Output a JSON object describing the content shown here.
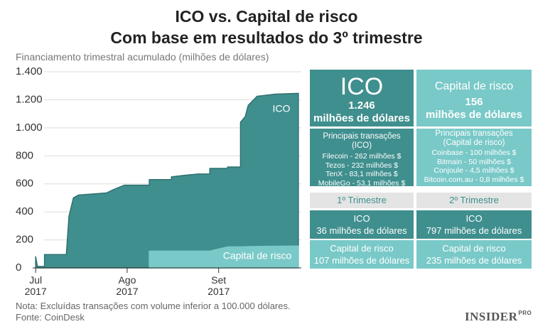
{
  "chart_data": {
    "type": "area",
    "title": "ICO vs. Capital de risco",
    "subtitle": "Com base em resultados do 3º trimestre",
    "y_label": "Financiamento trimestral acumulado (milhões de dólares)",
    "x": [
      0,
      0,
      0.6,
      3,
      3,
      10.4,
      10.4,
      11.3,
      12.8,
      14.5,
      24,
      26.5,
      30,
      38.5,
      38.5,
      46,
      46,
      50,
      55,
      59,
      59,
      65,
      65,
      69.4,
      69.4,
      71,
      72,
      75,
      81,
      89
    ],
    "series": [
      {
        "name": "ICO",
        "color": "#3f8f8e",
        "values": [
          0,
          80,
          10,
          10,
          95,
          95,
          100,
          370,
          500,
          520,
          535,
          560,
          590,
          590,
          630,
          630,
          650,
          660,
          670,
          670,
          710,
          710,
          720,
          720,
          1040,
          1080,
          1160,
          1225,
          1240,
          1246
        ]
      },
      {
        "name": "Capital de risco",
        "color": "#79c9c8",
        "values": [
          null,
          null,
          null,
          null,
          null,
          null,
          null,
          null,
          null,
          null,
          null,
          null,
          null,
          0,
          120,
          120,
          120,
          120,
          120,
          120,
          120,
          150,
          150,
          150,
          150,
          151,
          152,
          153,
          155,
          156
        ]
      }
    ],
    "xlim": [
      -1,
      90
    ],
    "xticks": [
      {
        "value": 0,
        "label": "Jul\n2017"
      },
      {
        "value": 31,
        "label": "Ago\n2017"
      },
      {
        "value": 62,
        "label": "Set\n2017"
      }
    ],
    "ylim": [
      0,
      1400
    ],
    "yticks": [
      0,
      200,
      400,
      600,
      800,
      {
        "value": 1000,
        "label": "1.000"
      },
      {
        "value": 1200,
        "label": "1.200"
      },
      {
        "value": 1400,
        "label": "1.400"
      }
    ],
    "grid": true,
    "note": "Nota: Excluídas transações com volume inferior a 100.000 dólares.",
    "source": "Fonte: CoinDesk"
  },
  "panels": {
    "ico": {
      "title": "ICO",
      "total": "1.246",
      "unit": "milhões de dólares",
      "deals_title": "Principais transações (ICO)",
      "deals": [
        "Filecoin - 262 milhões $",
        "Tezos - 232 milhões $",
        "TenX - 83,1 milhões $",
        "MobileGo - 53,1 milhões $"
      ]
    },
    "vc": {
      "title": "Capital de risco",
      "total": "156",
      "unit": "milhões de dólares",
      "deals_title": "Principais transações (Capital de risco)",
      "deals": [
        "Coinbase - 100 milhões $",
        "Bitmain - 50 milhões $",
        "Conjoule - 4,5 milhões $",
        "Bitcoin.com.au - 0,8 milhões $"
      ]
    },
    "quarters": [
      {
        "name": "1º Trimestre",
        "ico_label": "ICO",
        "ico": "36 milhões de dólares",
        "vc_label": "Capital de risco",
        "vc": "107 milhões de dólares"
      },
      {
        "name": "2º Trimestre",
        "ico_label": "ICO",
        "ico": "797 milhões de dólares",
        "vc_label": "Capital de risco",
        "vc": "235 milhões de dólares"
      }
    ]
  },
  "logo": {
    "brand": "INSIDER",
    "tag": "PRO"
  }
}
